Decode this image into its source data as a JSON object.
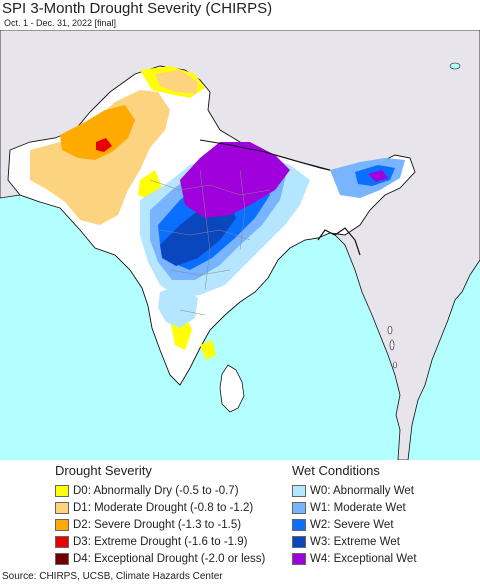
{
  "title": "SPI 3-Month Drought Severity (CHIRPS)",
  "subtitle": "Oct. 1 - Dec. 31, 2022 [final]",
  "colors": {
    "ocean": "#b3ffff",
    "land_outside": "#e8e4ec",
    "land_normal": "#ffffff",
    "borders": "#111111",
    "admin_lines": "#888888"
  },
  "legend": {
    "drought": {
      "title": "Drought Severity",
      "items": [
        {
          "label": "D0: Abnormally Dry (-0.5 to -0.7)",
          "color": "#ffff00"
        },
        {
          "label": "D1: Moderate Drought (-0.8 to -1.2)",
          "color": "#fcd37f"
        },
        {
          "label": "D2: Severe Drought (-1.3 to -1.5)",
          "color": "#ffaa00"
        },
        {
          "label": "D3: Extreme Drought (-1.6 to -1.9)",
          "color": "#e60000"
        },
        {
          "label": "D4: Exceptional Drought (-2.0 or less)",
          "color": "#730000"
        }
      ]
    },
    "wet": {
      "title": "Wet Conditions",
      "items": [
        {
          "label": "W0: Abnormally Wet",
          "color": "#b4e6ff"
        },
        {
          "label": "W1: Moderate Wet",
          "color": "#78b4ff"
        },
        {
          "label": "W2: Severe Wet",
          "color": "#0a6eff"
        },
        {
          "label": "W3: Extreme Wet",
          "color": "#0a46be"
        },
        {
          "label": "W4: Exceptional Wet",
          "color": "#a000dc"
        }
      ]
    }
  },
  "source": "Source: CHIRPS, UCSB, Climate Hazards Center"
}
